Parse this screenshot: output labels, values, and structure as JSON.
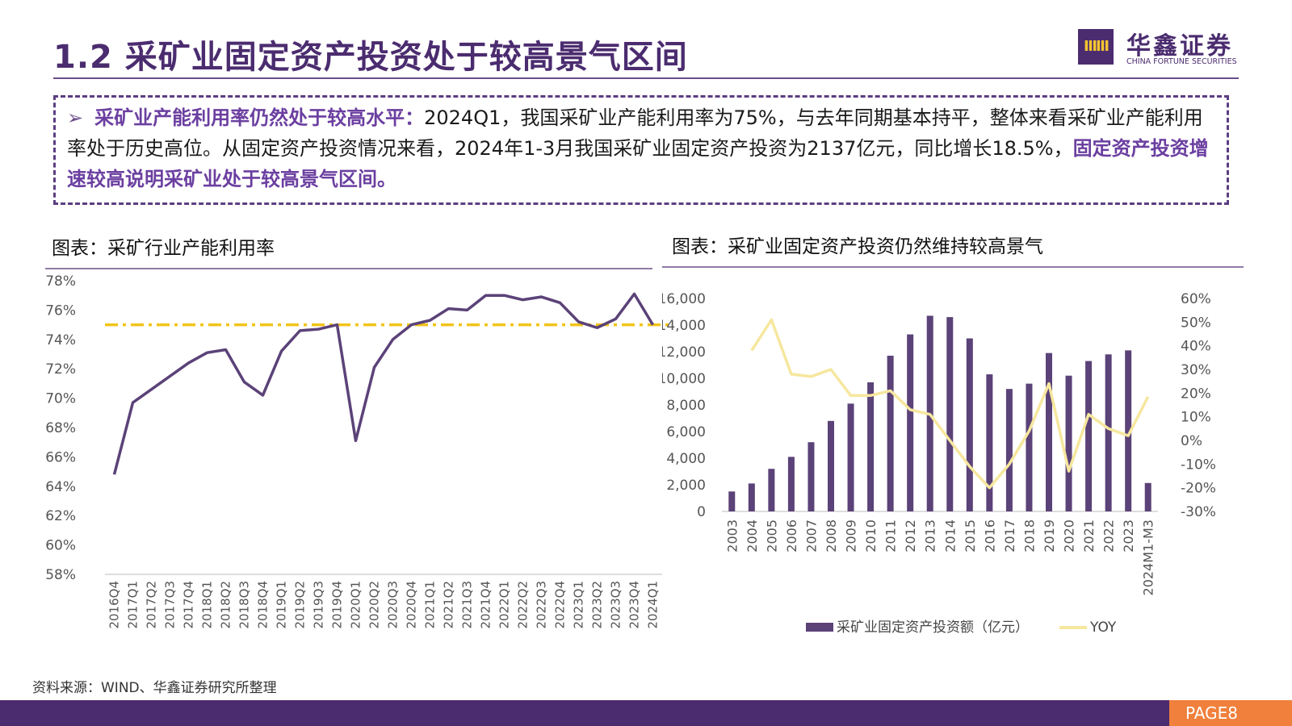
{
  "header": {
    "title": "1.2 采矿业固定资产投资处于较高景气区间",
    "logo_cn": "华鑫证券",
    "logo_en": "CHINA FORTUNE SECURITIES",
    "logo_mark": "ⅢⅢ"
  },
  "summary": {
    "bullet": "➢",
    "lead": "采矿业产能利用率仍然处于较高水平：",
    "body": "2024Q1，我国采矿业产能利用率为75%，与去年同期基本持平，整体来看采矿业产能利用率处于历史高位。从固定资产投资情况来看，2024年1-3月我国采矿业固定资产投资为2137亿元，同比增长18.5%，",
    "highlight": "固定资产投资增速较高说明采矿业处于较高景气区间。"
  },
  "charts": {
    "left_title": "图表：采矿行业产能利用率",
    "right_title": "图表：采矿业固定资产投资仍然维持较高景气"
  },
  "colors": {
    "purple": "#5B4278",
    "line_yellow": "#F6E79E",
    "ref_line": "#F2C318"
  },
  "chart_data": [
    {
      "type": "line",
      "title": "图表：采矿行业产能利用率",
      "categories": [
        "2016Q4",
        "2017Q1",
        "2017Q2",
        "2017Q3",
        "2017Q4",
        "2018Q1",
        "2018Q2",
        "2018Q3",
        "2018Q4",
        "2019Q1",
        "2019Q2",
        "2019Q3",
        "2019Q4",
        "2020Q1",
        "2020Q2",
        "2020Q3",
        "2020Q4",
        "2021Q1",
        "2021Q2",
        "2021Q3",
        "2021Q4",
        "2022Q1",
        "2022Q2",
        "2022Q3",
        "2022Q4",
        "2023Q1",
        "2023Q2",
        "2023Q3",
        "2023Q4",
        "2024Q1"
      ],
      "series": [
        {
          "values": [
            64.8,
            69.7,
            70.6,
            71.5,
            72.4,
            73.1,
            73.3,
            71.1,
            70.2,
            73.2,
            74.6,
            74.7,
            75.0,
            67.1,
            72.1,
            74.0,
            75.0,
            75.3,
            76.1,
            76.0,
            77.0,
            77.0,
            76.7,
            76.9,
            76.5,
            75.2,
            74.8,
            75.4,
            77.1,
            75.0
          ]
        }
      ],
      "reference_line": 75,
      "ylim": [
        58,
        78
      ],
      "yticks": [
        "58%",
        "60%",
        "62%",
        "64%",
        "66%",
        "68%",
        "70%",
        "72%",
        "74%",
        "76%",
        "78%"
      ],
      "grid": false
    },
    {
      "type": "bar+line",
      "title": "图表：采矿业固定资产投资仍然维持较高景气",
      "categories": [
        "2003",
        "2004",
        "2005",
        "2006",
        "2007",
        "2008",
        "2009",
        "2010",
        "2011",
        "2012",
        "2013",
        "2014",
        "2015",
        "2016",
        "2017",
        "2018",
        "2019",
        "2020",
        "2021",
        "2022",
        "2023",
        "2024M1-M3"
      ],
      "series": [
        {
          "name": "采矿业固定资产投资额（亿元）",
          "type": "bar",
          "axis": "left",
          "values": [
            1500,
            2100,
            3200,
            4100,
            5200,
            6800,
            8100,
            9700,
            11700,
            13300,
            14700,
            14600,
            13000,
            10300,
            9200,
            9600,
            11900,
            10200,
            11300,
            11800,
            12100,
            2137
          ]
        },
        {
          "name": "YOY",
          "type": "line",
          "axis": "right",
          "values": [
            null,
            38,
            51,
            28,
            27,
            30,
            19,
            19,
            21,
            13,
            11,
            0,
            -11,
            -20,
            -10,
            4,
            24,
            -13,
            11,
            5,
            2,
            18.5
          ]
        }
      ],
      "ylim_left": [
        0,
        16000
      ],
      "yticks_left": [
        "0",
        "2,000",
        "4,000",
        "6,000",
        "8,000",
        "10,000",
        "12,000",
        "14,000",
        "16,000"
      ],
      "ylim_right": [
        -30,
        60
      ],
      "yticks_right": [
        "-30%",
        "-20%",
        "-10%",
        "0%",
        "10%",
        "20%",
        "30%",
        "40%",
        "50%",
        "60%"
      ],
      "legend_position": "bottom",
      "grid": false
    }
  ],
  "footer": {
    "source": "资料来源：WIND、华鑫证券研究所整理",
    "page": "PAGE8"
  }
}
